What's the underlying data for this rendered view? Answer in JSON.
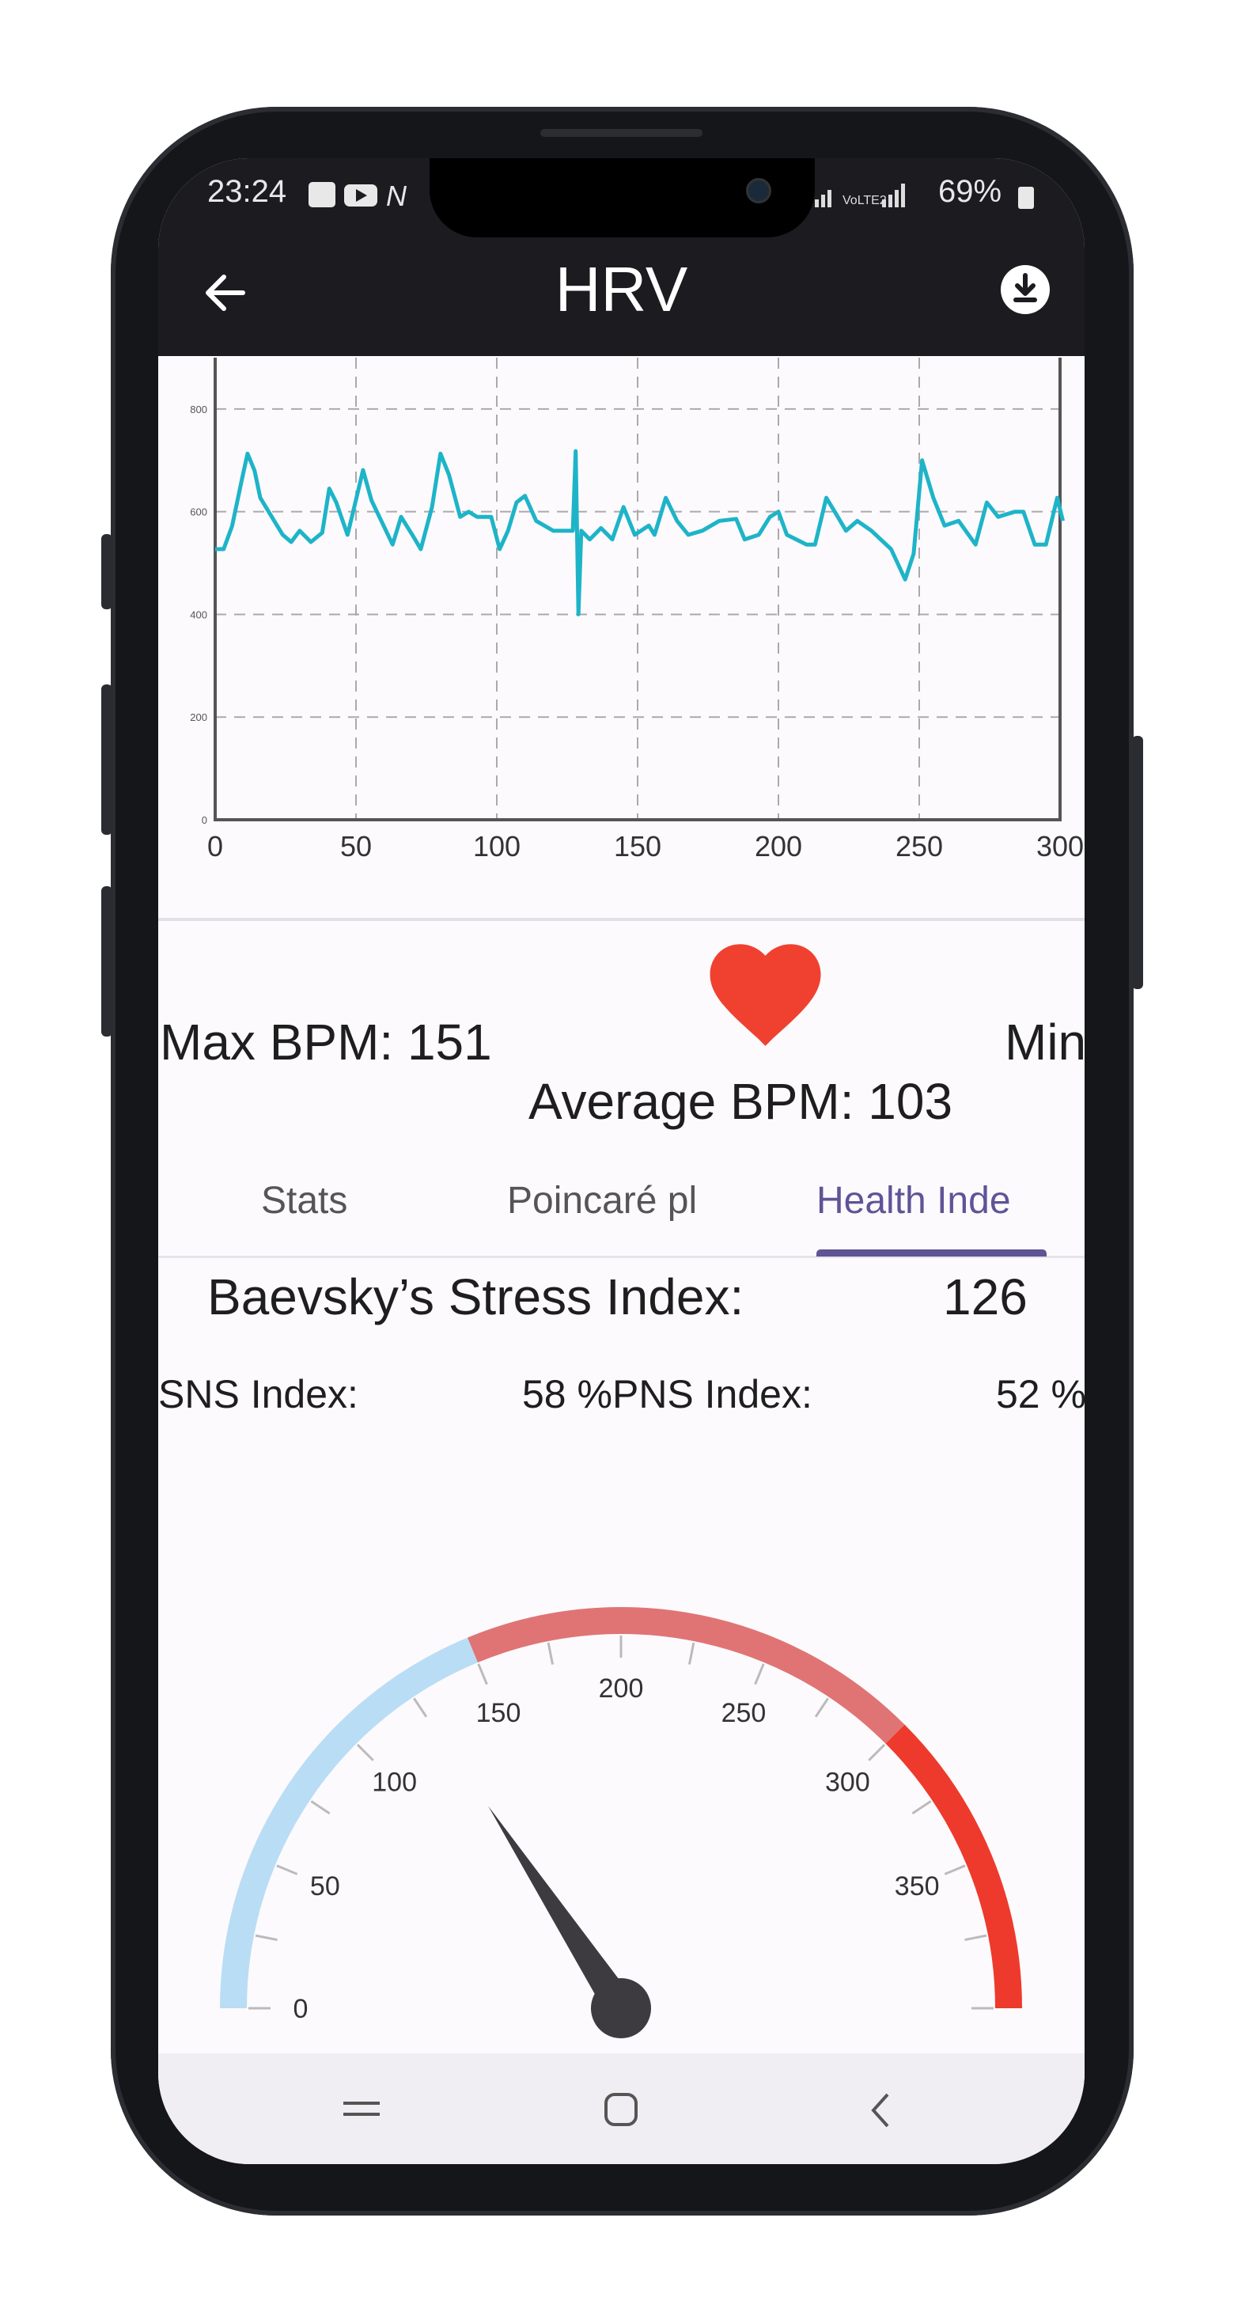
{
  "status_bar": {
    "time": "23:24",
    "battery": "69%",
    "signal_text": "VoLTE2"
  },
  "header": {
    "title": "HRV",
    "back_icon": "arrow-left-icon",
    "download_icon": "download-circle-icon"
  },
  "chart_data": {
    "type": "line",
    "title": "",
    "xlabel": "",
    "ylabel": "",
    "xlim": [
      0,
      300
    ],
    "ylim": [
      0,
      900
    ],
    "grid": true,
    "x_ticks": [
      "0",
      "50",
      "100",
      "150",
      "200",
      "250",
      "300"
    ],
    "y_ticks": [
      "0",
      "200",
      "400",
      "600",
      "800"
    ],
    "color": "#1eb4c8",
    "points": [
      [
        0,
        527
      ],
      [
        3,
        527
      ],
      [
        6,
        572
      ],
      [
        9.5,
        663
      ],
      [
        11.5,
        713
      ],
      [
        14,
        680
      ],
      [
        16,
        627
      ],
      [
        19,
        600
      ],
      [
        24,
        555
      ],
      [
        27,
        541
      ],
      [
        30,
        563
      ],
      [
        34,
        541
      ],
      [
        38,
        559
      ],
      [
        40.5,
        645
      ],
      [
        43,
        618
      ],
      [
        47,
        555
      ],
      [
        49,
        600
      ],
      [
        52.5,
        681
      ],
      [
        55.5,
        622
      ],
      [
        59,
        582
      ],
      [
        63,
        536
      ],
      [
        66,
        590
      ],
      [
        70,
        555
      ],
      [
        73,
        527
      ],
      [
        77,
        609
      ],
      [
        80,
        713
      ],
      [
        83,
        672
      ],
      [
        87,
        590
      ],
      [
        90,
        600
      ],
      [
        93,
        590
      ],
      [
        98,
        590
      ],
      [
        101,
        527
      ],
      [
        104,
        563
      ],
      [
        107,
        618
      ],
      [
        110,
        631
      ],
      [
        114,
        582
      ],
      [
        120,
        563
      ],
      [
        127,
        563
      ],
      [
        128,
        718
      ],
      [
        129,
        400
      ],
      [
        130,
        563
      ],
      [
        133,
        546
      ],
      [
        137,
        568
      ],
      [
        141,
        546
      ],
      [
        145,
        609
      ],
      [
        149,
        555
      ],
      [
        154,
        573
      ],
      [
        156,
        555
      ],
      [
        160,
        627
      ],
      [
        164,
        582
      ],
      [
        168,
        555
      ],
      [
        173,
        563
      ],
      [
        179,
        582
      ],
      [
        185,
        586
      ],
      [
        188,
        546
      ],
      [
        193,
        555
      ],
      [
        197,
        590
      ],
      [
        200,
        600
      ],
      [
        203,
        555
      ],
      [
        210,
        536
      ],
      [
        213,
        536
      ],
      [
        217,
        627
      ],
      [
        220,
        600
      ],
      [
        224,
        563
      ],
      [
        228,
        582
      ],
      [
        233,
        563
      ],
      [
        240,
        527
      ],
      [
        245,
        468
      ],
      [
        248,
        518
      ],
      [
        251,
        700
      ],
      [
        255,
        627
      ],
      [
        259,
        573
      ],
      [
        264,
        582
      ],
      [
        270,
        536
      ],
      [
        274,
        618
      ],
      [
        278,
        590
      ],
      [
        284,
        600
      ],
      [
        287,
        600
      ],
      [
        291,
        536
      ],
      [
        295,
        536
      ],
      [
        299,
        627
      ],
      [
        301,
        582
      ]
    ]
  },
  "bpm": {
    "max": "Max BPM: 151",
    "min": "Min",
    "average": "Average BPM: 103",
    "heart_color": "#f04130"
  },
  "tabs": [
    {
      "label": "Stats",
      "active": false
    },
    {
      "label": "Poincaré pl",
      "active": false
    },
    {
      "label": "Health Inde",
      "active": true
    }
  ],
  "health": {
    "stress_label": "Baevsky’s Stress Index:",
    "stress_value": "126",
    "sns_label": "SNS Index:",
    "sns_pns_text": "58 %PNS Index:",
    "pns_value": "52 %"
  },
  "gauge": {
    "min": 0,
    "max": 400,
    "value": 126,
    "labels": [
      "0",
      "50",
      "100",
      "150",
      "200",
      "250",
      "300",
      "350"
    ],
    "ranges": [
      {
        "from": 0,
        "to": 150,
        "color": "#b9ddf5"
      },
      {
        "from": 150,
        "to": 300,
        "color": "#e07474"
      },
      {
        "from": 300,
        "to": 400,
        "color": "#ee3a2c"
      }
    ],
    "needle_color": "#3d3b40"
  },
  "nav": {
    "recents_icon": "recents-icon",
    "home_icon": "home-icon",
    "back_icon": "back-chevron-icon"
  }
}
